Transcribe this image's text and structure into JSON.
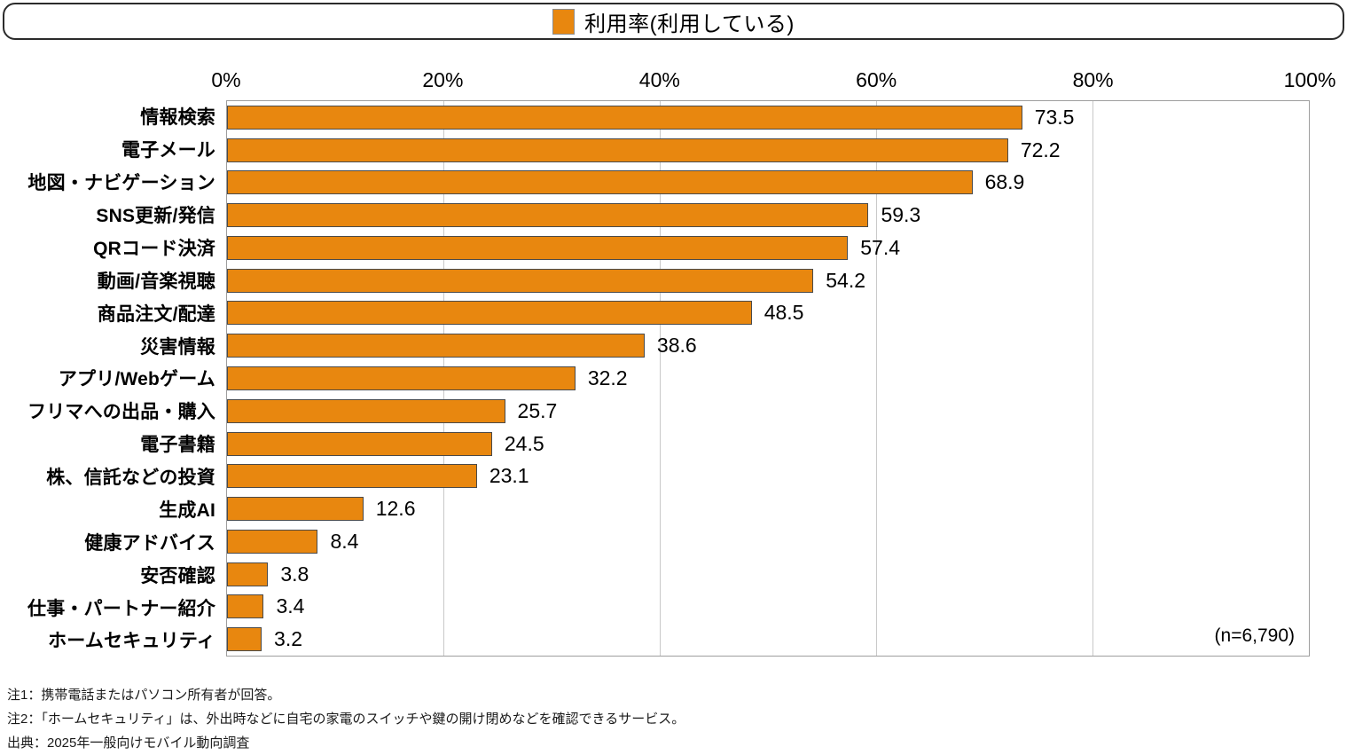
{
  "chart_data": {
    "type": "bar",
    "orientation": "horizontal",
    "title": "",
    "legend": "利用率(利用している)",
    "legend_position": "top",
    "bar_color": "#E8870F",
    "categories": [
      "情報検索",
      "電子メール",
      "地図・ナビゲーション",
      "SNS更新/発信",
      "QRコード決済",
      "動画/音楽視聴",
      "商品注文/配達",
      "災害情報",
      "アプリ/Webゲーム",
      "フリマへの出品・購入",
      "電子書籍",
      "株、信託などの投資",
      "生成AI",
      "健康アドバイス",
      "安否確認",
      "仕事・パートナー紹介",
      "ホームセキュリティ"
    ],
    "values": [
      73.5,
      72.2,
      68.9,
      59.3,
      57.4,
      54.2,
      48.5,
      38.6,
      32.2,
      25.7,
      24.5,
      23.1,
      12.6,
      8.4,
      3.8,
      3.4,
      3.2
    ],
    "x_ticks": [
      "0%",
      "20%",
      "40%",
      "60%",
      "80%",
      "100%"
    ],
    "xlim": [
      0,
      100
    ],
    "grid": true,
    "sample_note": "(n=6,790)"
  },
  "footnotes": [
    "注1：携帯電話またはパソコン所有者が回答。",
    "注2：「ホームセキュリティ」は、外出時などに自宅の家電のスイッチや鍵の開け閉めなどを確認できるサービス。",
    "出典：2025年一般向けモバイル動向調査"
  ]
}
